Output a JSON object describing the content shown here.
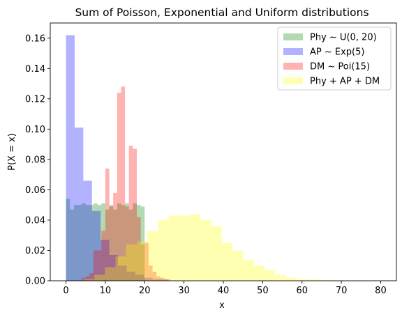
{
  "chart_data": {
    "type": "bar",
    "title": "Sum of Poisson, Exponential and Uniform distributions",
    "xlabel": "x",
    "ylabel": "P(X = x)",
    "xlim": [
      -4,
      84
    ],
    "ylim": [
      0,
      0.17
    ],
    "xticks": [
      0,
      10,
      20,
      30,
      40,
      50,
      60,
      70,
      80
    ],
    "yticks": [
      0.0,
      0.02,
      0.04,
      0.06,
      0.08,
      0.1,
      0.12,
      0.14,
      0.16
    ],
    "ytick_labels": [
      "0.00",
      "0.02",
      "0.04",
      "0.06",
      "0.08",
      "0.10",
      "0.12",
      "0.14",
      "0.16"
    ],
    "grid": false,
    "legend_position": "top-right",
    "series": [
      {
        "name": "Phy ~ U(0, 20)",
        "color": "#008000",
        "bins": [
          {
            "x0": 0,
            "x1": 1,
            "y": 0.054
          },
          {
            "x0": 1,
            "x1": 2,
            "y": 0.047
          },
          {
            "x0": 2,
            "x1": 3,
            "y": 0.05
          },
          {
            "x0": 3,
            "x1": 4,
            "y": 0.05
          },
          {
            "x0": 4,
            "x1": 5,
            "y": 0.051
          },
          {
            "x0": 5,
            "x1": 6,
            "y": 0.05
          },
          {
            "x0": 6,
            "x1": 7,
            "y": 0.05
          },
          {
            "x0": 7,
            "x1": 8,
            "y": 0.051
          },
          {
            "x0": 8,
            "x1": 9,
            "y": 0.05
          },
          {
            "x0": 9,
            "x1": 10,
            "y": 0.051
          },
          {
            "x0": 10,
            "x1": 11,
            "y": 0.047
          },
          {
            "x0": 11,
            "x1": 12,
            "y": 0.05
          },
          {
            "x0": 12,
            "x1": 13,
            "y": 0.047
          },
          {
            "x0": 13,
            "x1": 14,
            "y": 0.051
          },
          {
            "x0": 14,
            "x1": 15,
            "y": 0.05
          },
          {
            "x0": 15,
            "x1": 16,
            "y": 0.051
          },
          {
            "x0": 16,
            "x1": 17,
            "y": 0.047
          },
          {
            "x0": 17,
            "x1": 18,
            "y": 0.051
          },
          {
            "x0": 18,
            "x1": 19,
            "y": 0.05
          },
          {
            "x0": 19,
            "x1": 20,
            "y": 0.049
          }
        ]
      },
      {
        "name": "AP ~ Exp(5)",
        "color": "#0000ff",
        "bins": [
          {
            "x0": 0,
            "x1": 2.2,
            "y": 0.162
          },
          {
            "x0": 2.2,
            "x1": 4.4,
            "y": 0.101
          },
          {
            "x0": 4.4,
            "x1": 6.6,
            "y": 0.066
          },
          {
            "x0": 6.6,
            "x1": 8.8,
            "y": 0.046
          },
          {
            "x0": 8.8,
            "x1": 11.0,
            "y": 0.027
          },
          {
            "x0": 11.0,
            "x1": 13.2,
            "y": 0.017
          },
          {
            "x0": 13.2,
            "x1": 15.4,
            "y": 0.01
          },
          {
            "x0": 15.4,
            "x1": 17.6,
            "y": 0.006
          },
          {
            "x0": 17.6,
            "x1": 19.8,
            "y": 0.004
          },
          {
            "x0": 19.8,
            "x1": 22.0,
            "y": 0.002
          },
          {
            "x0": 22.0,
            "x1": 24.2,
            "y": 0.001
          },
          {
            "x0": 24.2,
            "x1": 26.4,
            "y": 0.001
          }
        ]
      },
      {
        "name": "DM ~ Poi(15)",
        "color": "#ff0000",
        "bins": [
          {
            "x0": 4,
            "x1": 5,
            "y": 0.002
          },
          {
            "x0": 5,
            "x1": 6,
            "y": 0.003
          },
          {
            "x0": 6,
            "x1": 7,
            "y": 0.005
          },
          {
            "x0": 7,
            "x1": 8,
            "y": 0.02
          },
          {
            "x0": 8,
            "x1": 9,
            "y": 0.02
          },
          {
            "x0": 9,
            "x1": 10,
            "y": 0.033
          },
          {
            "x0": 10,
            "x1": 11,
            "y": 0.074
          },
          {
            "x0": 11,
            "x1": 12,
            "y": 0.049
          },
          {
            "x0": 12,
            "x1": 13,
            "y": 0.058
          },
          {
            "x0": 13,
            "x1": 14,
            "y": 0.124
          },
          {
            "x0": 14,
            "x1": 15,
            "y": 0.128
          },
          {
            "x0": 15,
            "x1": 16,
            "y": 0.049
          },
          {
            "x0": 16,
            "x1": 17,
            "y": 0.089
          },
          {
            "x0": 17,
            "x1": 18,
            "y": 0.087
          },
          {
            "x0": 18,
            "x1": 19,
            "y": 0.042
          },
          {
            "x0": 19,
            "x1": 20,
            "y": 0.024
          },
          {
            "x0": 20,
            "x1": 21,
            "y": 0.025
          },
          {
            "x0": 21,
            "x1": 22,
            "y": 0.01
          },
          {
            "x0": 22,
            "x1": 23,
            "y": 0.006
          },
          {
            "x0": 23,
            "x1": 24,
            "y": 0.003
          },
          {
            "x0": 24,
            "x1": 25,
            "y": 0.002
          },
          {
            "x0": 25,
            "x1": 26,
            "y": 0.001
          }
        ]
      },
      {
        "name": "Phy + AP + DM",
        "color": "#ffff00",
        "bins": [
          {
            "x0": 4.5,
            "x1": 7.2,
            "y": 0.001
          },
          {
            "x0": 7.2,
            "x1": 9.9,
            "y": 0.004
          },
          {
            "x0": 9.9,
            "x1": 12.6,
            "y": 0.009
          },
          {
            "x0": 12.6,
            "x1": 15.3,
            "y": 0.016
          },
          {
            "x0": 15.3,
            "x1": 18.0,
            "y": 0.024
          },
          {
            "x0": 18.0,
            "x1": 20.7,
            "y": 0.026
          },
          {
            "x0": 20.7,
            "x1": 23.4,
            "y": 0.033
          },
          {
            "x0": 23.4,
            "x1": 26.1,
            "y": 0.04
          },
          {
            "x0": 26.1,
            "x1": 28.8,
            "y": 0.043
          },
          {
            "x0": 28.8,
            "x1": 31.5,
            "y": 0.043
          },
          {
            "x0": 31.5,
            "x1": 34.2,
            "y": 0.044
          },
          {
            "x0": 34.2,
            "x1": 36.9,
            "y": 0.04
          },
          {
            "x0": 36.9,
            "x1": 39.6,
            "y": 0.036
          },
          {
            "x0": 39.6,
            "x1": 42.3,
            "y": 0.025
          },
          {
            "x0": 42.3,
            "x1": 45.0,
            "y": 0.02
          },
          {
            "x0": 45.0,
            "x1": 47.7,
            "y": 0.014
          },
          {
            "x0": 47.7,
            "x1": 50.4,
            "y": 0.01
          },
          {
            "x0": 50.4,
            "x1": 53.1,
            "y": 0.007
          },
          {
            "x0": 53.1,
            "x1": 55.8,
            "y": 0.004
          },
          {
            "x0": 55.8,
            "x1": 58.5,
            "y": 0.002
          },
          {
            "x0": 58.5,
            "x1": 61.2,
            "y": 0.001
          },
          {
            "x0": 61.2,
            "x1": 63.9,
            "y": 0.001
          },
          {
            "x0": 63.9,
            "x1": 66.6,
            "y": 0.0005
          },
          {
            "x0": 66.6,
            "x1": 69.3,
            "y": 0.0003
          },
          {
            "x0": 69.3,
            "x1": 72.0,
            "y": 0.0002
          },
          {
            "x0": 72.0,
            "x1": 74.7,
            "y": 0.0001
          },
          {
            "x0": 74.7,
            "x1": 77.4,
            "y": 0.0001
          },
          {
            "x0": 77.4,
            "x1": 80.1,
            "y": 0.0001
          }
        ]
      }
    ]
  }
}
